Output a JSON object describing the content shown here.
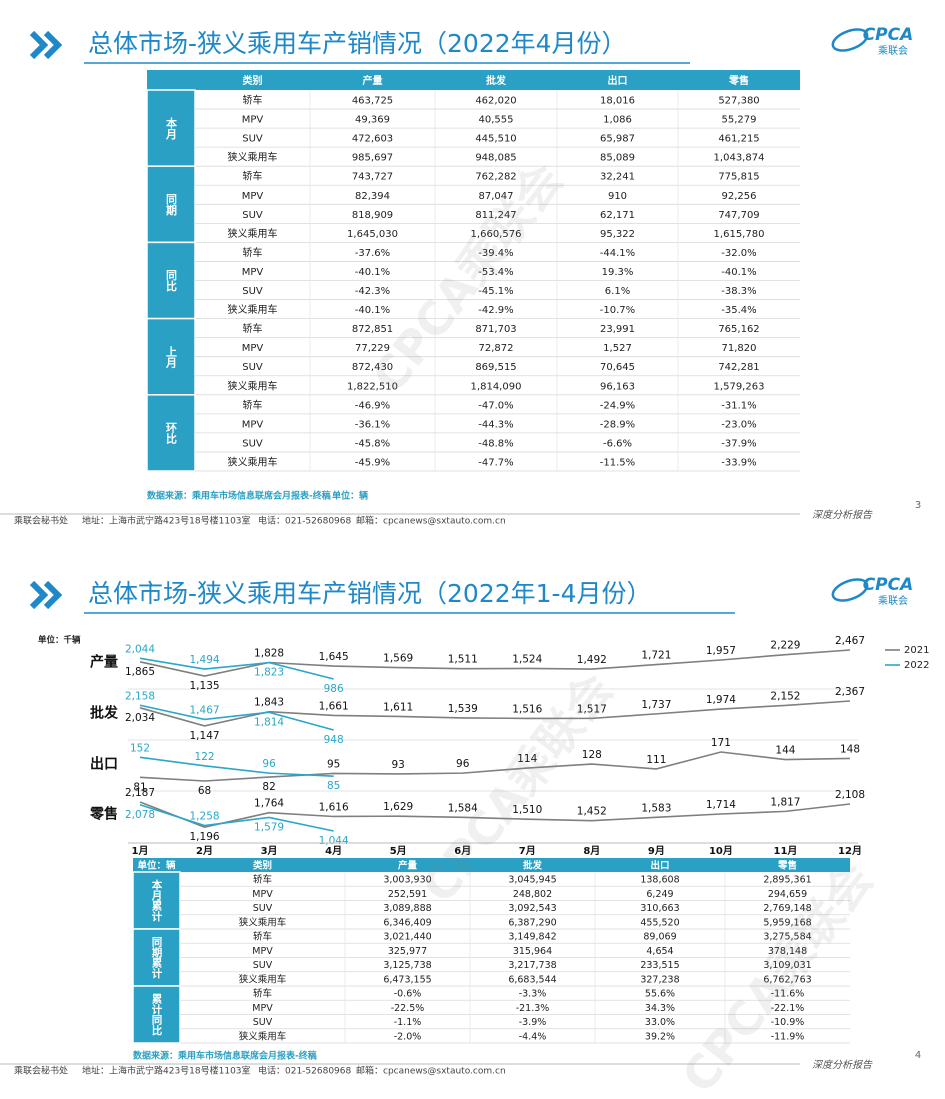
{
  "watermark": "CPCA乘联会",
  "logo": {
    "name": "CPCA",
    "sub": "乘联会"
  },
  "footer": {
    "org": "乘联会秘书处",
    "address": "地址：上海市武宁路423号18号楼1103室",
    "phone": "电话：021-52680968",
    "email": "邮箱：cpcanews@sxtauto.com.cn",
    "tagline": "深度分析报告"
  },
  "slides": [
    {
      "title": "总体市场-狭义乘用车产销情况（2022年4月份）",
      "table": {
        "header": [
          "类别",
          "产量",
          "批发",
          "出口",
          "零售"
        ],
        "groups": [
          {
            "label": "本月",
            "rows": [
              [
                "轿车",
                "463,725",
                "462,020",
                "18,016",
                "527,380"
              ],
              [
                "MPV",
                "49,369",
                "40,555",
                "1,086",
                "55,279"
              ],
              [
                "SUV",
                "472,603",
                "445,510",
                "65,987",
                "461,215"
              ],
              [
                "狭义乘用车",
                "985,697",
                "948,085",
                "85,089",
                "1,043,874"
              ]
            ]
          },
          {
            "label": "同期",
            "rows": [
              [
                "轿车",
                "743,727",
                "762,282",
                "32,241",
                "775,815"
              ],
              [
                "MPV",
                "82,394",
                "87,047",
                "910",
                "92,256"
              ],
              [
                "SUV",
                "818,909",
                "811,247",
                "62,171",
                "747,709"
              ],
              [
                "狭义乘用车",
                "1,645,030",
                "1,660,576",
                "95,322",
                "1,615,780"
              ]
            ]
          },
          {
            "label": "同比",
            "rows": [
              [
                "轿车",
                "-37.6%",
                "-39.4%",
                "-44.1%",
                "-32.0%"
              ],
              [
                "MPV",
                "-40.1%",
                "-53.4%",
                "19.3%",
                "-40.1%"
              ],
              [
                "SUV",
                "-42.3%",
                "-45.1%",
                "6.1%",
                "-38.3%"
              ],
              [
                "狭义乘用车",
                "-40.1%",
                "-42.9%",
                "-10.7%",
                "-35.4%"
              ]
            ]
          },
          {
            "label": "上月",
            "rows": [
              [
                "轿车",
                "872,851",
                "871,703",
                "23,991",
                "765,162"
              ],
              [
                "MPV",
                "77,229",
                "72,872",
                "1,527",
                "71,820"
              ],
              [
                "SUV",
                "872,430",
                "869,515",
                "70,645",
                "742,281"
              ],
              [
                "狭义乘用车",
                "1,822,510",
                "1,814,090",
                "96,163",
                "1,579,263"
              ]
            ]
          },
          {
            "label": "环比",
            "rows": [
              [
                "轿车",
                "-46.9%",
                "-47.0%",
                "-24.9%",
                "-31.1%"
              ],
              [
                "MPV",
                "-36.1%",
                "-44.3%",
                "-28.9%",
                "-23.0%"
              ],
              [
                "SUV",
                "-45.8%",
                "-48.8%",
                "-6.6%",
                "-37.9%"
              ],
              [
                "狭义乘用车",
                "-45.9%",
                "-47.7%",
                "-11.5%",
                "-33.9%"
              ]
            ]
          }
        ]
      },
      "source": "数据来源：乘用车市场信息联席会月报表-终稿",
      "unit": "单位：辆",
      "page": "3"
    },
    {
      "title": "总体市场-狭义乘用车产销情况（2022年1-4月份）",
      "table": {
        "header": [
          "单位：辆",
          "类别",
          "产量",
          "批发",
          "出口",
          "零售"
        ],
        "groups": [
          {
            "label": "本月累计",
            "rows": [
              [
                "轿车",
                "3,003,930",
                "3,045,945",
                "138,608",
                "2,895,361"
              ],
              [
                "MPV",
                "252,591",
                "248,802",
                "6,249",
                "294,659"
              ],
              [
                "SUV",
                "3,089,888",
                "3,092,543",
                "310,663",
                "2,769,148"
              ],
              [
                "狭义乘用车",
                "6,346,409",
                "6,387,290",
                "455,520",
                "5,959,168"
              ]
            ]
          },
          {
            "label": "同期累计",
            "rows": [
              [
                "轿车",
                "3,021,440",
                "3,149,842",
                "89,069",
                "3,275,584"
              ],
              [
                "MPV",
                "325,977",
                "315,964",
                "4,654",
                "378,148"
              ],
              [
                "SUV",
                "3,125,738",
                "3,217,738",
                "233,515",
                "3,109,031"
              ],
              [
                "狭义乘用车",
                "6,473,155",
                "6,683,544",
                "327,238",
                "6,762,763"
              ]
            ]
          },
          {
            "label": "累计同比",
            "rows": [
              [
                "轿车",
                "-0.6%",
                "-3.3%",
                "55.6%",
                "-11.6%"
              ],
              [
                "MPV",
                "-22.5%",
                "-21.3%",
                "34.3%",
                "-22.1%"
              ],
              [
                "SUV",
                "-1.1%",
                "-3.9%",
                "33.0%",
                "-10.9%"
              ],
              [
                "狭义乘用车",
                "-2.0%",
                "-4.4%",
                "39.2%",
                "-11.9%"
              ]
            ]
          }
        ]
      },
      "source": "数据来源：乘用车市场信息联席会月报表-终稿",
      "page": "4"
    }
  ],
  "chart_data": {
    "type": "line",
    "unit": "单位：千辆",
    "categories": [
      "1月",
      "2月",
      "3月",
      "4月",
      "5月",
      "6月",
      "7月",
      "8月",
      "9月",
      "10月",
      "11月",
      "12月"
    ],
    "panels": [
      {
        "name": "产量",
        "series": [
          {
            "name": "2021",
            "color": "#7f7f7f",
            "values": [
              1865,
              1135,
              1828,
              1645,
              1569,
              1511,
              1524,
              1492,
              1721,
              1957,
              2229,
              2467
            ],
            "value_labels": [
              "1,865",
              "1,135",
              "1,828",
              "1,645",
              "1,569",
              "1,511",
              "1,524",
              "1,492",
              "1,721",
              "1,957",
              "2,229",
              "2,467"
            ]
          },
          {
            "name": "2022",
            "color": "#2aa7c9",
            "values": [
              2044,
              1494,
              1823,
              986
            ],
            "value_labels": [
              "2,044",
              "1,494",
              "1,823",
              "986"
            ]
          }
        ]
      },
      {
        "name": "批发",
        "series": [
          {
            "name": "2021",
            "color": "#7f7f7f",
            "values": [
              2034,
              1147,
              1843,
              1661,
              1611,
              1539,
              1516,
              1517,
              1737,
              1974,
              2152,
              2367
            ],
            "value_labels": [
              "2,034",
              "1,147",
              "1,843",
              "1,661",
              "1,611",
              "1,539",
              "1,516",
              "1,517",
              "1,737",
              "1,974",
              "2,152",
              "2,367"
            ]
          },
          {
            "name": "2022",
            "color": "#2aa7c9",
            "values": [
              2158,
              1467,
              1814,
              948
            ],
            "value_labels": [
              "2,158",
              "1,467",
              "1,814",
              "948"
            ]
          }
        ]
      },
      {
        "name": "出口",
        "series": [
          {
            "name": "2021",
            "color": "#7f7f7f",
            "values": [
              81,
              68,
              82,
              95,
              93,
              96,
              114,
              128,
              111,
              171,
              144,
              148
            ],
            "value_labels": [
              "81",
              "68",
              "82",
              "95",
              "93",
              "96",
              "114",
              "128",
              "111",
              "171",
              "144",
              "148"
            ]
          },
          {
            "name": "2022",
            "color": "#2aa7c9",
            "values": [
              152,
              122,
              96,
              85
            ],
            "value_labels": [
              "152",
              "122",
              "96",
              "85"
            ]
          }
        ]
      },
      {
        "name": "零售",
        "series": [
          {
            "name": "2021",
            "color": "#7f7f7f",
            "values": [
              2187,
              1196,
              1764,
              1616,
              1629,
              1584,
              1510,
              1452,
              1583,
              1714,
              1817,
              2108
            ],
            "value_labels": [
              "2,187",
              "1,196",
              "1,764",
              "1,616",
              "1,629",
              "1,584",
              "1,510",
              "1,452",
              "1,583",
              "1,714",
              "1,817",
              "2,108"
            ]
          },
          {
            "name": "2022",
            "color": "#2aa7c9",
            "values": [
              2078,
              1258,
              1579,
              1044
            ],
            "value_labels": [
              "2,078",
              "1,258",
              "1,579",
              "1,044"
            ]
          }
        ]
      }
    ]
  }
}
